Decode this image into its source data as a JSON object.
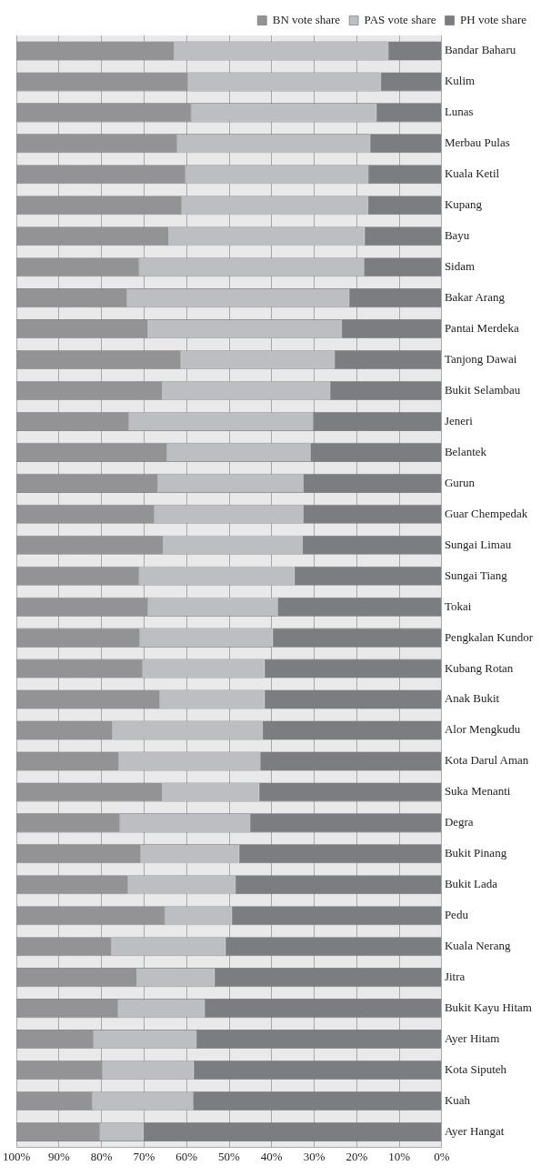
{
  "chart_data": {
    "type": "bar",
    "orientation": "horizontal",
    "stacked": true,
    "categories": [
      "Bandar Baharu",
      "Kulim",
      "Lunas",
      "Merbau Pulas",
      "Kuala Ketil",
      "Kupang",
      "Bayu",
      "Sidam",
      "Bakar Arang",
      "Pantai Merdeka",
      "Tanjong Dawai",
      "Bukit Selambau",
      "Jeneri",
      "Belantek",
      "Gurun",
      "Guar Chempedak",
      "Sungai Limau",
      "Sungai Tiang",
      "Tokai",
      "Pengkalan Kundor",
      "Kubang Rotan",
      "Anak Bukit",
      "Alor Mengkudu",
      "Kota Darul Aman",
      "Suka Menanti",
      "Degra",
      "Bukit Pinang",
      "Bukit Lada",
      "Pedu",
      "Kuala Nerang",
      "Jitra",
      "Bukit Kayu Hitam",
      "Ayer Hitam",
      "Kota Siputeh",
      "Kuah",
      "Ayer Hangat"
    ],
    "series": [
      {
        "name": "PH vote share",
        "color": "#7c7d80",
        "values": [
          12.6,
          14.4,
          15.4,
          16.9,
          17.3,
          17.4,
          18.2,
          18.3,
          21.8,
          23.6,
          25.2,
          26.3,
          30.3,
          30.9,
          32.6,
          32.6,
          32.8,
          34.7,
          38.6,
          39.8,
          41.7,
          41.7,
          42.2,
          42.7,
          43.0,
          45.1,
          47.7,
          48.6,
          49.4,
          50.9,
          53.5,
          55.8,
          57.7,
          58.4,
          58.5,
          70.2
        ]
      },
      {
        "name": "PAS vote share",
        "color": "#bdbec1",
        "values": [
          50.3,
          45.4,
          43.6,
          45.5,
          43.0,
          43.9,
          46.0,
          52.9,
          52.2,
          45.5,
          36.3,
          39.4,
          43.4,
          33.7,
          34.2,
          35.1,
          32.7,
          36.5,
          30.6,
          31.2,
          28.8,
          24.6,
          35.3,
          33.3,
          22.7,
          30.6,
          23.2,
          25.3,
          15.8,
          26.8,
          18.2,
          20.5,
          24.2,
          21.5,
          23.8,
          10.2
        ]
      },
      {
        "name": "BN vote share",
        "color": "#939396",
        "values": [
          37.1,
          40.2,
          41.0,
          37.6,
          39.7,
          38.7,
          35.8,
          28.8,
          26.0,
          30.9,
          38.5,
          34.3,
          26.3,
          35.4,
          33.2,
          32.3,
          34.5,
          28.8,
          30.8,
          29.0,
          29.5,
          33.7,
          22.5,
          24.0,
          34.3,
          24.3,
          29.1,
          26.1,
          34.8,
          22.3,
          28.3,
          23.7,
          18.1,
          20.1,
          17.7,
          19.6
        ]
      }
    ],
    "xlim": [
      100,
      0
    ],
    "xticks": [
      {
        "value": 100,
        "label": "100%"
      },
      {
        "value": 90,
        "label": "90%"
      },
      {
        "value": 80,
        "label": "80%"
      },
      {
        "value": 70,
        "label": "70%"
      },
      {
        "value": 60,
        "label": "60%"
      },
      {
        "value": 50,
        "label": "50%"
      },
      {
        "value": 40,
        "label": "40%"
      },
      {
        "value": 30,
        "label": "30%"
      },
      {
        "value": 20,
        "label": "20%"
      },
      {
        "value": 10,
        "label": "10%"
      },
      {
        "value": 0,
        "label": "0%"
      }
    ],
    "grid": "x",
    "legend": "top right"
  }
}
